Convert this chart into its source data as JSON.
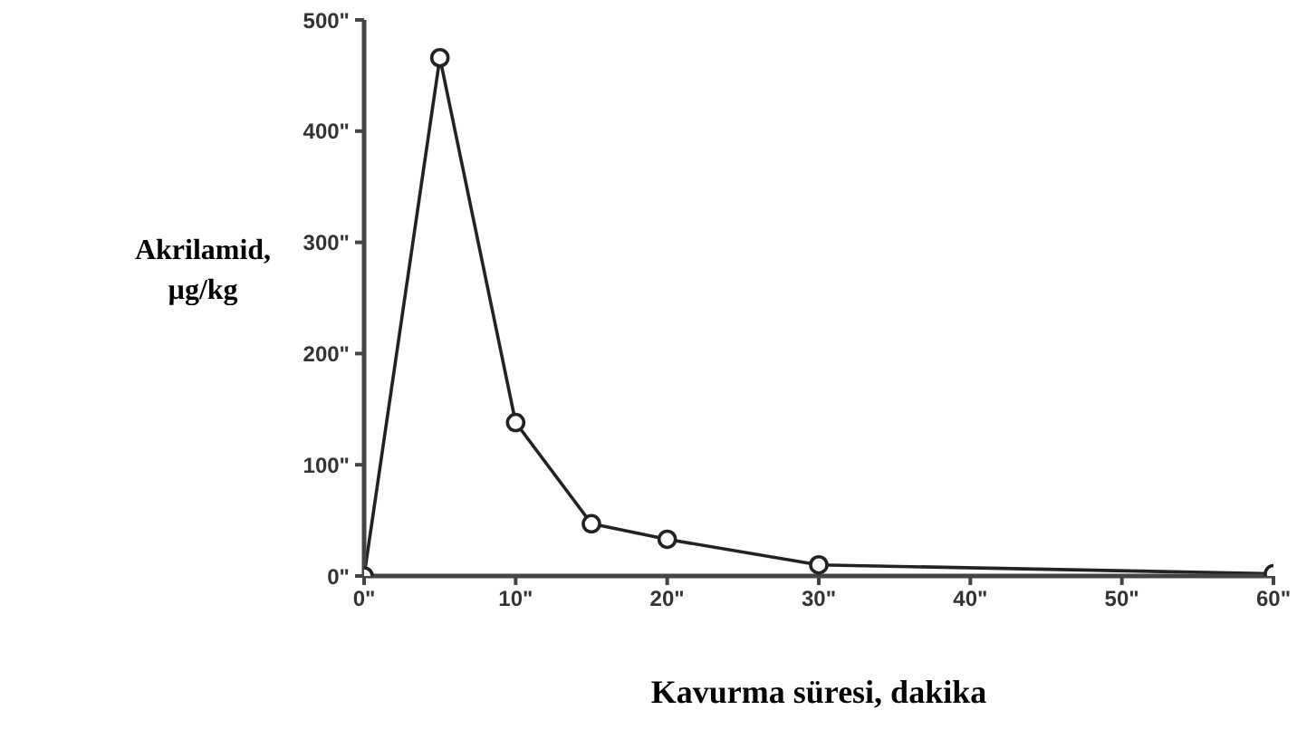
{
  "chart_data": {
    "type": "line",
    "xlabel": "Kavurma süresi, dakika",
    "ylabel": "Akrilamid, µg/kg",
    "x": [
      0,
      5,
      10,
      15,
      20,
      30,
      60
    ],
    "series": [
      {
        "color": "#222222",
        "values": [
          0,
          466,
          138,
          47,
          33,
          10,
          2
        ]
      }
    ],
    "xlim": [
      0,
      60
    ],
    "ylim": [
      0,
      500
    ],
    "xticks": [
      {
        "value": 0,
        "label": "0\""
      },
      {
        "value": 10,
        "label": "10\""
      },
      {
        "value": 20,
        "label": "20\""
      },
      {
        "value": 30,
        "label": "30\""
      },
      {
        "value": 40,
        "label": "40\""
      },
      {
        "value": 50,
        "label": "50\""
      },
      {
        "value": 60,
        "label": "60\""
      }
    ],
    "yticks": [
      {
        "value": 0,
        "label": "0\""
      },
      {
        "value": 100,
        "label": "100\""
      },
      {
        "value": 200,
        "label": "200\""
      },
      {
        "value": 300,
        "label": "300\""
      },
      {
        "value": 400,
        "label": "400\""
      },
      {
        "value": 500,
        "label": "500\""
      }
    ],
    "marker": "circle",
    "line_style": "solid",
    "grid": false,
    "legend": false
  }
}
